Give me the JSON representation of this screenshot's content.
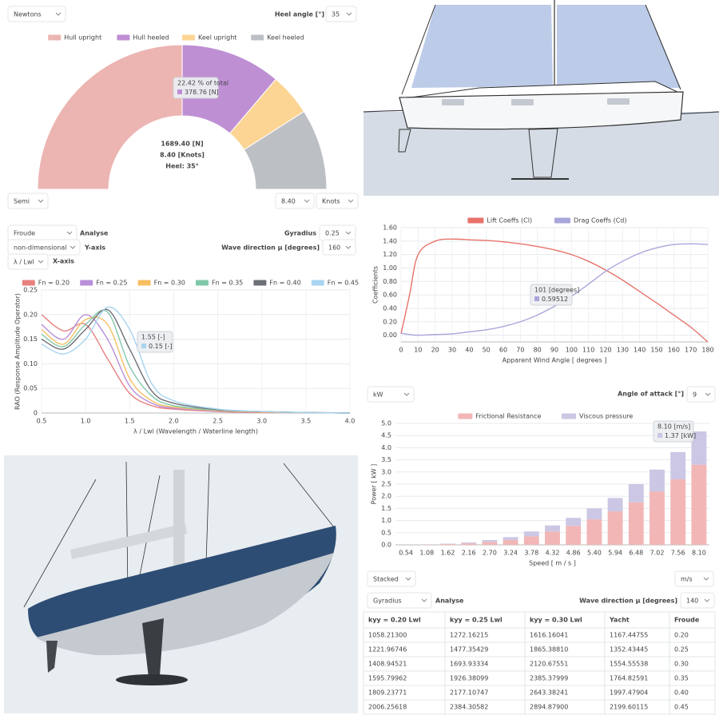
{
  "controls": {
    "force_panel": {
      "unit": "Newtons",
      "heel_label": "Heel angle [°]",
      "heel": "35",
      "style": "Semi",
      "speed": "8.40",
      "speed_unit": "Knots"
    },
    "rao_panel": {
      "variable": "Froude",
      "action": "Analyse",
      "gyradius_label": "Gyradius",
      "gyradius": "0.25",
      "y_mode": "non-dimensional",
      "y_axis_label": "Y-axis",
      "wave_label": "Wave direction μ [degrees]",
      "wave": "160",
      "x_mode": "λ / Lwl",
      "x_axis_label": "X-axis"
    },
    "power_panel": {
      "unit": "kW",
      "angle_label": "Angle of attack [°]",
      "angle": "9",
      "mode": "Stacked",
      "speed_unit": "m/s"
    },
    "table_panel": {
      "variable": "Gyradius",
      "action": "Analyse",
      "wave_label": "Wave direction μ [degrees]",
      "wave": "140"
    }
  },
  "chart_data": [
    {
      "type": "pie",
      "half": true,
      "categories": [
        "Hull upright",
        "Hull heeled",
        "Keel upright",
        "Keel heeled"
      ],
      "values": [
        845.0,
        378.76,
        160.0,
        305.64
      ],
      "colors": [
        "#ecb5b2",
        "#bf8fd4",
        "#fcd594",
        "#bcbfc4"
      ],
      "center_labels": [
        "1689.40 [N]",
        "8.40 [Knots]",
        "Heel: 35°"
      ],
      "tooltip": [
        "22.42 % of total",
        "378.76 [N]"
      ]
    },
    {
      "type": "line",
      "y_label": "RAO (Response Amplitude Operator)",
      "x_label": "λ / Lwl   (Wavelength / Waterline length)",
      "x": [
        0.5,
        0.75,
        1.0,
        1.25,
        1.5,
        1.75,
        2.0,
        2.5,
        3.0,
        3.5,
        4.0
      ],
      "xlim": [
        0.5,
        4.0
      ],
      "ylim": [
        0,
        0.25
      ],
      "xticks": [
        0.5,
        {
          "value": 1.0,
          "label": "1.0"
        },
        1.5,
        {
          "value": 2.0,
          "label": "2.0"
        },
        2.5,
        {
          "value": 3.0,
          "label": "3.0"
        },
        3.5,
        {
          "value": 4.0,
          "label": "4.0"
        }
      ],
      "yticks": [
        0,
        0.05,
        {
          "value": 0.1,
          "label": "0.10"
        },
        0.15,
        {
          "value": 0.2,
          "label": "0.20"
        },
        0.25
      ],
      "grid": true,
      "legend": "top",
      "smooth": true,
      "series": [
        {
          "name": "Fn = 0.20",
          "color": "#e88080",
          "values": [
            0.2,
            0.167,
            0.18,
            0.11,
            0.04,
            0.015,
            0.008,
            0.003,
            0.001,
            0.001,
            0.0
          ]
        },
        {
          "name": "Fn = 0.25",
          "color": "#b98fd8",
          "values": [
            0.18,
            0.15,
            0.2,
            0.15,
            0.055,
            0.02,
            0.01,
            0.004,
            0.002,
            0.001,
            0.0
          ]
        },
        {
          "name": "Fn = 0.30",
          "color": "#f6bf63",
          "values": [
            0.17,
            0.14,
            0.19,
            0.18,
            0.07,
            0.025,
            0.012,
            0.005,
            0.002,
            0.001,
            0.0
          ]
        },
        {
          "name": "Fn = 0.35",
          "color": "#80c8aa",
          "values": [
            0.16,
            0.135,
            0.18,
            0.205,
            0.095,
            0.035,
            0.015,
            0.006,
            0.003,
            0.001,
            0.0
          ]
        },
        {
          "name": "Fn = 0.40",
          "color": "#6c6f76",
          "values": [
            0.15,
            0.13,
            0.17,
            0.21,
            0.13,
            0.045,
            0.02,
            0.007,
            0.003,
            0.001,
            0.0
          ]
        },
        {
          "name": "Fn = 0.45",
          "color": "#a8d4f0",
          "values": [
            0.14,
            0.12,
            0.15,
            0.215,
            0.17,
            0.06,
            0.025,
            0.008,
            0.003,
            0.001,
            0.0
          ]
        }
      ],
      "tooltip": [
        "1.55 [-]",
        "0.15 [-]"
      ]
    },
    {
      "type": "line",
      "y_label": "Coefficients",
      "x_label": "Apparent Wind Angle [ degrees ]",
      "x": [
        0,
        5,
        10,
        20,
        30,
        40,
        50,
        60,
        70,
        80,
        90,
        100,
        110,
        120,
        130,
        140,
        150,
        160,
        170,
        180
      ],
      "xlim": [
        0,
        180
      ],
      "ylim": [
        -0.1,
        1.6
      ],
      "xticks": [
        0,
        10,
        20,
        30,
        40,
        50,
        60,
        70,
        80,
        90,
        100,
        110,
        120,
        130,
        140,
        150,
        160,
        170,
        180
      ],
      "yticks": [
        {
          "value": 0,
          "label": "0.00"
        },
        {
          "value": 0.2,
          "label": "0.20"
        },
        {
          "value": 0.4,
          "label": "0.40"
        },
        {
          "value": 0.6,
          "label": "0.60"
        },
        {
          "value": 0.8,
          "label": "0.80"
        },
        {
          "value": 1.0,
          "label": "1.00"
        },
        {
          "value": 1.2,
          "label": "1.20"
        },
        {
          "value": 1.4,
          "label": "1.40"
        },
        {
          "value": 1.6,
          "label": "1.60"
        }
      ],
      "grid": true,
      "legend": "top",
      "smooth": true,
      "series": [
        {
          "name": "Lift Coeffs (Cl)",
          "color": "#e8736b",
          "values": [
            0.02,
            0.6,
            1.2,
            1.4,
            1.43,
            1.42,
            1.41,
            1.39,
            1.36,
            1.32,
            1.27,
            1.2,
            1.1,
            0.97,
            0.82,
            0.65,
            0.48,
            0.3,
            0.12,
            -0.1
          ]
        },
        {
          "name": "Drag Coeffs (Cd)",
          "color": "#a9a6dc",
          "values": [
            0.03,
            0.01,
            0.0,
            0.01,
            0.02,
            0.05,
            0.08,
            0.13,
            0.2,
            0.3,
            0.43,
            0.58,
            0.76,
            0.95,
            1.1,
            1.22,
            1.3,
            1.35,
            1.36,
            1.35
          ]
        }
      ],
      "tooltip": [
        "101 [degrees]",
        "0.59512"
      ]
    },
    {
      "type": "bar",
      "stacked": true,
      "y_label": "Power [ kW ]",
      "x_label": "Speed [ m / s ]",
      "categories": [
        "0.54",
        "1.08",
        "1.62",
        "2.16",
        "2.70",
        "3.24",
        "3.78",
        "4.32",
        "4.86",
        "5.40",
        "5.94",
        "6.48",
        "7.02",
        "7.56",
        "8.10"
      ],
      "ylim": [
        0,
        5
      ],
      "yticks": [
        {
          "value": 0,
          "label": "0.0"
        },
        0.5,
        {
          "value": 1,
          "label": "1.0"
        },
        1.5,
        {
          "value": 2,
          "label": "2.0"
        },
        2.5,
        {
          "value": 3,
          "label": "3.0"
        },
        3.5,
        {
          "value": 4,
          "label": "4.0"
        },
        4.5,
        {
          "value": 5,
          "label": "5.0"
        }
      ],
      "grid": true,
      "legend": "top",
      "series": [
        {
          "name": "Frictional Resistance",
          "color": "#f2b6b6",
          "values": [
            0.0,
            0.01,
            0.03,
            0.06,
            0.12,
            0.2,
            0.35,
            0.55,
            0.78,
            1.05,
            1.38,
            1.75,
            2.2,
            2.7,
            3.3
          ]
        },
        {
          "name": "Viscous pressure",
          "color": "#cbc7e4",
          "values": [
            0.0,
            0.01,
            0.02,
            0.04,
            0.08,
            0.12,
            0.2,
            0.25,
            0.33,
            0.45,
            0.55,
            0.75,
            0.9,
            1.12,
            1.37
          ]
        }
      ],
      "tooltip": [
        "8.10 [m/s]",
        "1.37 [kW]"
      ]
    }
  ],
  "table": {
    "header": [
      "kyy = 0.20 Lwl",
      "kyy = 0.25 Lwl",
      "kyy = 0.30 Lwl",
      "Yacht",
      "Froude"
    ],
    "rows": [
      [
        "1058.21300",
        "1272.16215",
        "1616.16041",
        "1167.44755",
        "0.20"
      ],
      [
        "1221.96746",
        "1477.35429",
        "1865.38810",
        "1352.43445",
        "0.25"
      ],
      [
        "1408.94521",
        "1693.93334",
        "2120.67551",
        "1554.55538",
        "0.30"
      ],
      [
        "1595.79962",
        "1926.38099",
        "2385.37999",
        "1764.82591",
        "0.35"
      ],
      [
        "1809.23771",
        "2177.10747",
        "2643.38241",
        "1997.47904",
        "0.40"
      ],
      [
        "2006.25618",
        "2384.30582",
        "2894.87900",
        "2199.60115",
        "0.45"
      ]
    ]
  }
}
